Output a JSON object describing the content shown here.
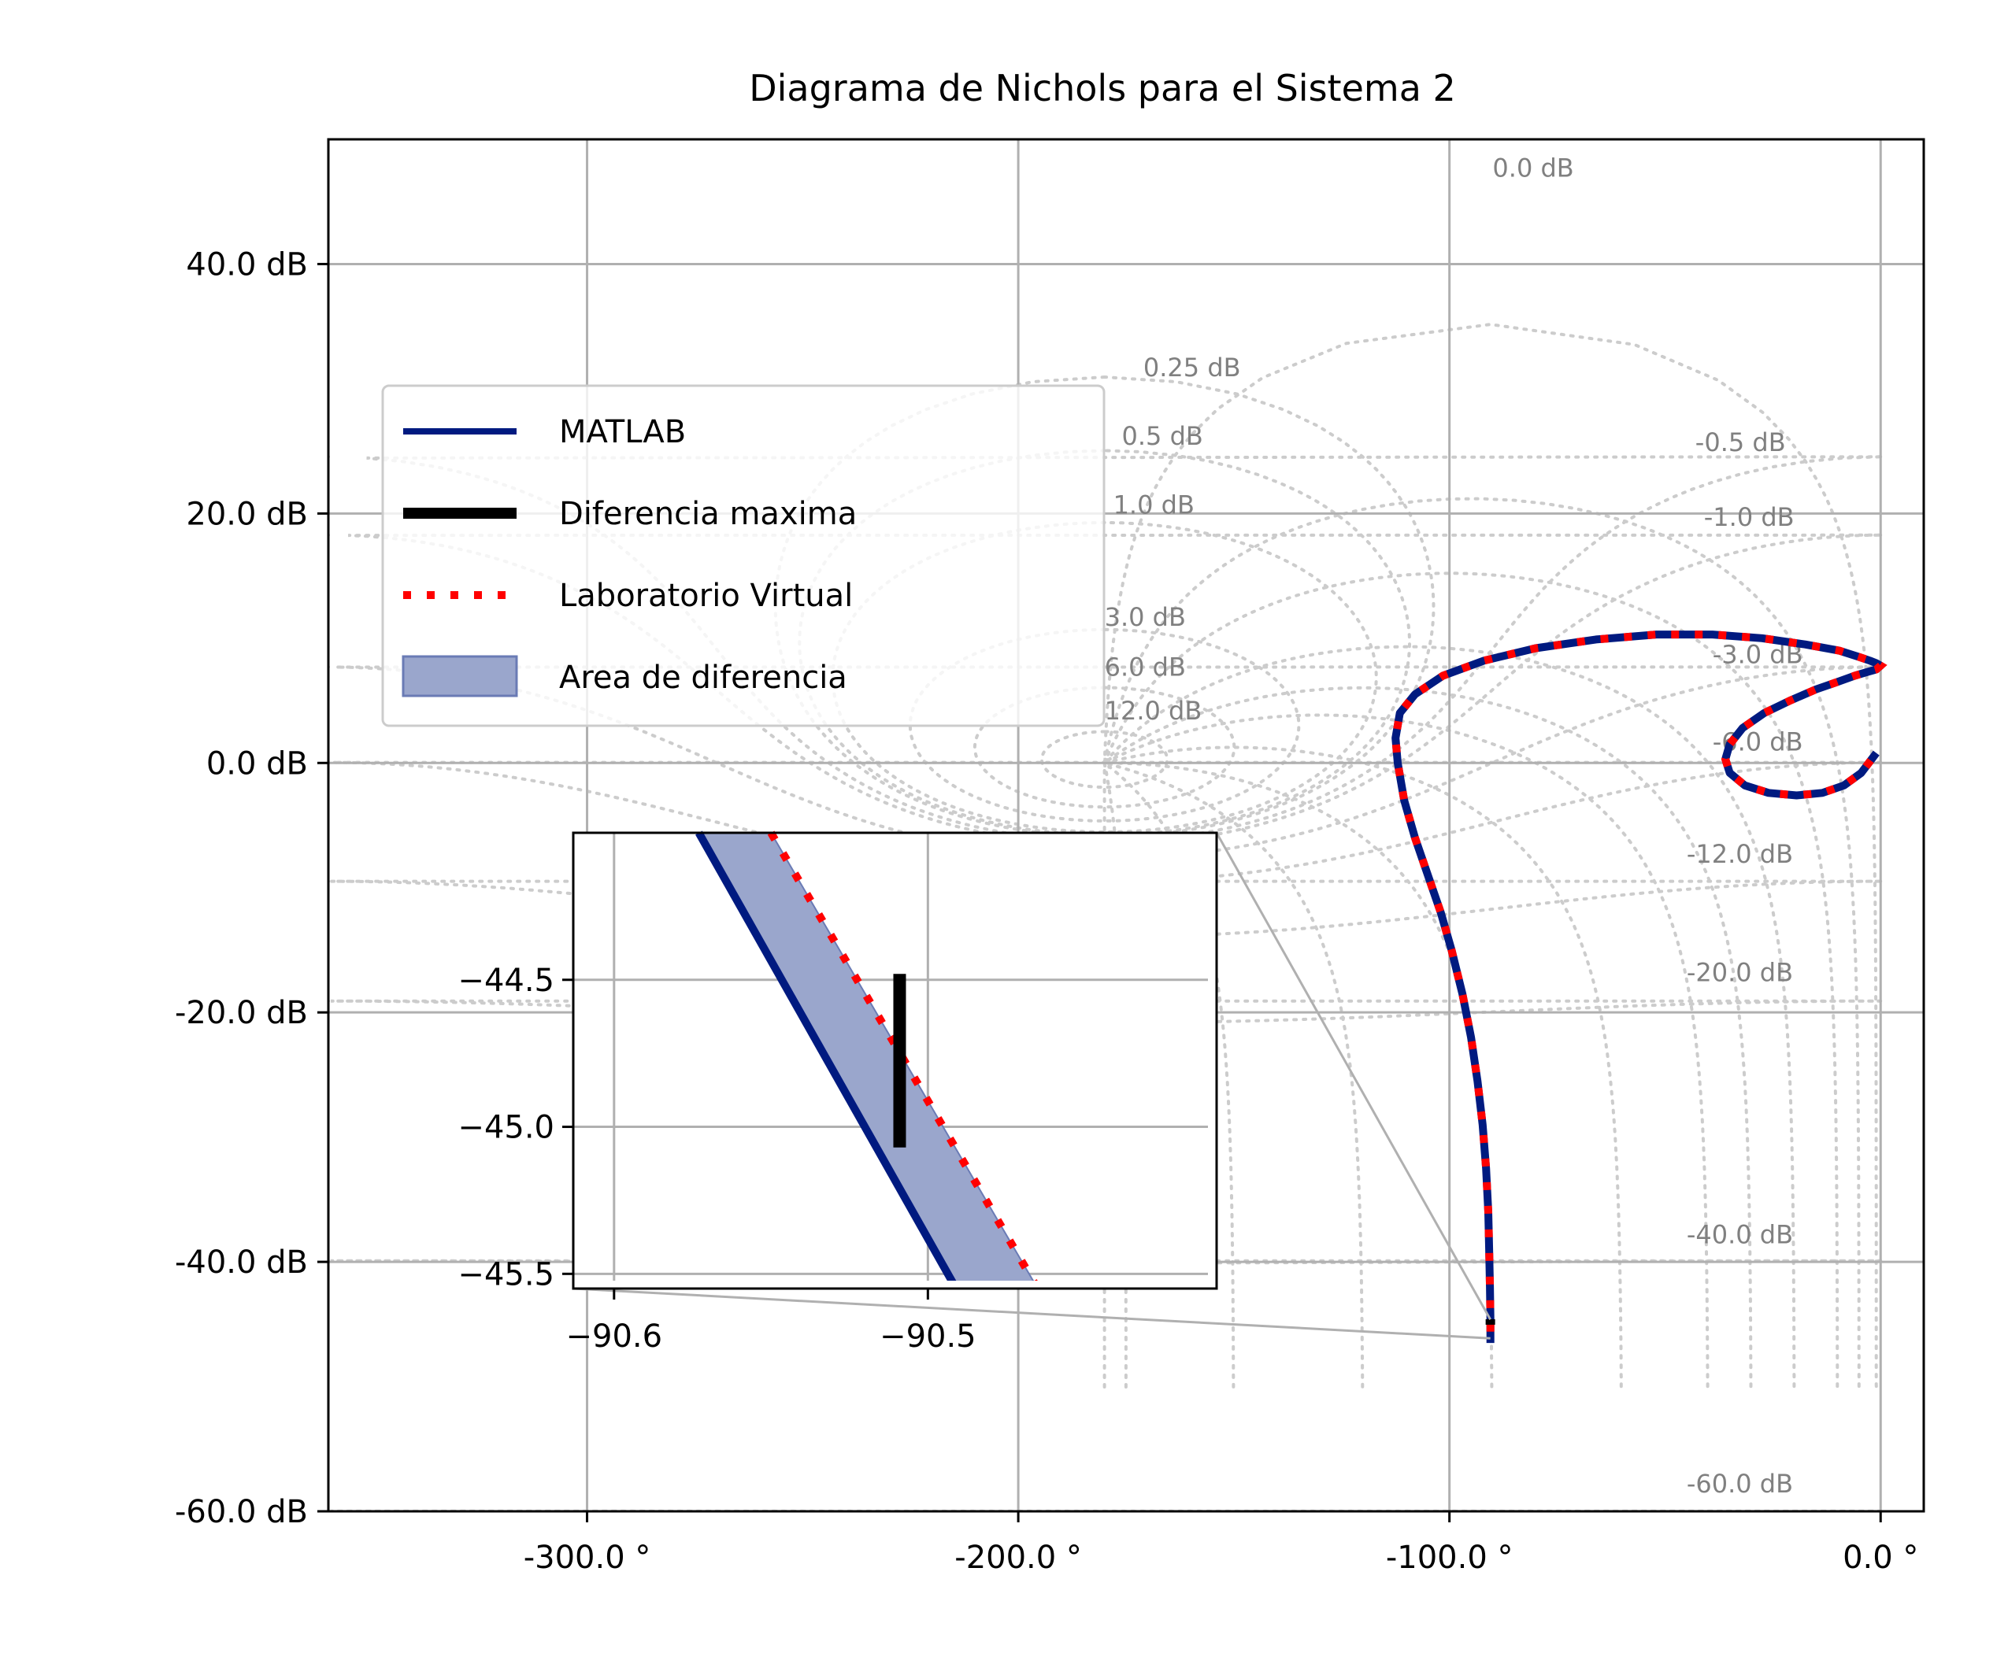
{
  "chart_data": {
    "type": "line",
    "title": "Diagrama de Nichols para el Sistema 2",
    "xlabel": "",
    "ylabel": "",
    "xlim": [
      -360,
      10
    ],
    "ylim": [
      -60,
      50
    ],
    "x_ticks": [
      {
        "value": -300,
        "label": "-300.0 °"
      },
      {
        "value": -200,
        "label": "-200.0 °"
      },
      {
        "value": -100,
        "label": "-100.0 °"
      },
      {
        "value": 0,
        "label": "0.0 °"
      }
    ],
    "y_ticks": [
      {
        "value": 40,
        "label": "40.0 dB"
      },
      {
        "value": 20,
        "label": "20.0 dB"
      },
      {
        "value": 0,
        "label": "0.0 dB"
      },
      {
        "value": -20,
        "label": "-20.0 dB"
      },
      {
        "value": -40,
        "label": "-40.0 dB"
      },
      {
        "value": -60,
        "label": "-60.0 dB"
      }
    ],
    "grid": true,
    "legend_position": "upper-left",
    "legend": [
      {
        "label": "MATLAB",
        "style": "solid-line",
        "color": "#001a80"
      },
      {
        "label": "Diferencia maxima",
        "style": "thick-line",
        "color": "#000000"
      },
      {
        "label": "Laboratorio Virtual",
        "style": "dotted-line",
        "color": "#ff0000"
      },
      {
        "label": "Area de diferencia",
        "style": "patch",
        "color": "#9aa6cc"
      }
    ],
    "closed_loop_contour_labels": [
      {
        "text": "0.0 dB",
        "phase": -90,
        "mag": 47
      },
      {
        "text": "0.25 dB",
        "phase": -171,
        "mag": 31
      },
      {
        "text": "0.5 dB",
        "phase": -176,
        "mag": 25.5
      },
      {
        "text": "1.0 dB",
        "phase": -178,
        "mag": 20
      },
      {
        "text": "3.0 dB",
        "phase": -180,
        "mag": 11
      },
      {
        "text": "6.0 dB",
        "phase": -180,
        "mag": 7
      },
      {
        "text": "12.0 dB",
        "phase": -180,
        "mag": 3.5
      },
      {
        "text": "-0.5 dB",
        "phase": -43,
        "mag": 25
      },
      {
        "text": "-1.0 dB",
        "phase": -41,
        "mag": 19
      },
      {
        "text": "-3.0 dB",
        "phase": -39,
        "mag": 8
      },
      {
        "text": "-6.0 dB",
        "phase": -39,
        "mag": 1
      },
      {
        "text": "-12.0 dB",
        "phase": -45,
        "mag": -8
      },
      {
        "text": "-20.0 dB",
        "phase": -45,
        "mag": -17.5
      },
      {
        "text": "-40.0 dB",
        "phase": -45,
        "mag": -38.5
      },
      {
        "text": "-60.0 dB",
        "phase": -45,
        "mag": -58.5
      }
    ],
    "series": [
      {
        "name": "MATLAB",
        "color": "#001a80",
        "x": [
          -90.5,
          -90.5,
          -90.6,
          -90.8,
          -91.0,
          -91.5,
          -92.3,
          -93.5,
          -95.0,
          -97.0,
          -99.5,
          -102.0,
          -105.0,
          -108.0,
          -110.5,
          -112.0,
          -112.5,
          -111.5,
          -108.0,
          -101.5,
          -92.0,
          -80.0,
          -66.0,
          -52.0,
          -39.0,
          -27.5,
          -17.5,
          -9.5,
          -5.0,
          -2.5,
          -1.0,
          0.0,
          -1.0,
          -3.0,
          -6.0,
          -10.0,
          -15.0,
          -21.0,
          -27.0,
          -32.0,
          -35.0,
          -36.0,
          -35.0,
          -31.5,
          -26.0,
          -19.5,
          -13.5,
          -8.5,
          -4.5,
          -1.0
        ],
        "y": [
          -46.5,
          -44.5,
          -42.0,
          -39.0,
          -36.0,
          -32.5,
          -29.0,
          -25.5,
          -22.0,
          -18.5,
          -15.0,
          -12.0,
          -9.0,
          -6.0,
          -3.0,
          0.0,
          2.0,
          4.0,
          5.5,
          7.0,
          8.2,
          9.2,
          9.9,
          10.3,
          10.3,
          10.0,
          9.5,
          9.0,
          8.5,
          8.2,
          8.0,
          7.8,
          7.5,
          7.3,
          7.0,
          6.5,
          5.9,
          5.0,
          4.0,
          2.8,
          1.5,
          0.3,
          -0.8,
          -1.8,
          -2.4,
          -2.6,
          -2.4,
          -1.8,
          -0.8,
          0.8
        ]
      },
      {
        "name": "Laboratorio Virtual",
        "color": "#ff0000",
        "x": [
          -90.5,
          -90.5,
          -90.6,
          -90.8,
          -91.0,
          -91.5,
          -92.3,
          -93.5,
          -95.0,
          -97.0,
          -99.5,
          -102.0,
          -105.0,
          -108.0,
          -110.5,
          -112.0,
          -112.5,
          -111.5,
          -108.0,
          -101.5,
          -92.0,
          -80.0,
          -66.0,
          -52.0,
          -39.0,
          -27.5,
          -17.5,
          -9.5,
          -5.0,
          -2.5,
          -1.0,
          0.0,
          -1.0,
          -3.0,
          -6.0,
          -10.0,
          -15.0,
          -21.0,
          -27.0,
          -32.0,
          -35.0,
          -36.0,
          -35.0,
          -31.5,
          -26.0,
          -19.5,
          -13.5,
          -8.5,
          -4.5,
          -1.0
        ],
        "y": [
          -45.6,
          -44.5,
          -42.0,
          -39.0,
          -36.0,
          -32.5,
          -29.0,
          -25.5,
          -22.0,
          -18.5,
          -15.0,
          -12.0,
          -9.0,
          -6.0,
          -3.0,
          0.0,
          2.0,
          4.0,
          5.5,
          7.0,
          8.2,
          9.2,
          9.9,
          10.3,
          10.3,
          10.0,
          9.5,
          9.0,
          8.5,
          8.2,
          8.0,
          7.8,
          7.5,
          7.3,
          7.0,
          6.5,
          5.9,
          5.0,
          4.0,
          2.8,
          1.5,
          0.3,
          -0.8,
          -1.8,
          -2.4,
          -2.6,
          -2.4,
          -1.8,
          -0.8,
          0.8
        ]
      }
    ],
    "max_difference": {
      "phase": -90.51,
      "mag_from": -45.04,
      "mag_to": -44.6
    },
    "inset": {
      "xlim": [
        -90.613,
        -90.408
      ],
      "ylim": [
        -45.55,
        -44.0
      ],
      "x_ticks": [
        {
          "value": -90.6,
          "label": "−90.6"
        },
        {
          "value": -90.5,
          "label": "−90.5"
        }
      ],
      "y_ticks": [
        {
          "value": -44.5,
          "label": "−44.5"
        },
        {
          "value": -45.0,
          "label": "−45.0"
        },
        {
          "value": -45.5,
          "label": "−45.5"
        }
      ],
      "matlab_line": {
        "x": [
          -90.573,
          -90.491
        ],
        "y": [
          -44.0,
          -45.55
        ]
      },
      "virtual_line": {
        "x": [
          -90.55,
          -90.465
        ],
        "y": [
          -44.0,
          -45.55
        ]
      },
      "max_difference": {
        "phase": -90.509,
        "mag_from": -45.07,
        "mag_to": -44.48
      }
    }
  }
}
